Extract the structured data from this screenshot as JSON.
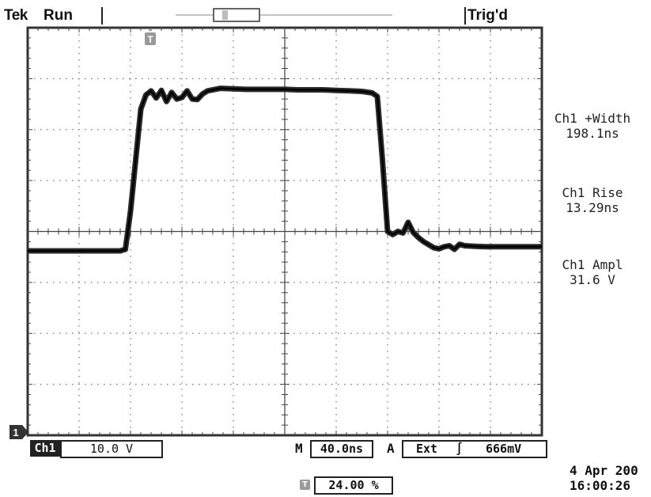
{
  "header": {
    "brand": "Tek",
    "state": "Run",
    "trigger_status": "Trig'd"
  },
  "markers": {
    "trigger_position_marker": "T",
    "channel_ground_marker": "1",
    "horizontal_position_icon": "T"
  },
  "measurements": [
    {
      "label": "Ch1 +Width",
      "value": "198.1ns"
    },
    {
      "label": "Ch1 Rise",
      "value": "13.29ns"
    },
    {
      "label": "Ch1 Ampl",
      "value": "31.6 V"
    }
  ],
  "channel": {
    "name": "Ch1",
    "scale": "10.0 V"
  },
  "timebase": {
    "mode": "M",
    "scale": "40.0ns"
  },
  "trigger": {
    "mode": "A",
    "source": "Ext",
    "slope_symbol": "∫",
    "level": "666mV"
  },
  "horizontal_position": "24.00 %",
  "datetime": {
    "date": "4 Apr 200",
    "time": "16:00:26"
  },
  "chart_data": {
    "type": "line",
    "series": [
      {
        "x": [
          0,
          72,
          76,
          80,
          84,
          88,
          92,
          96,
          100,
          104,
          108,
          112,
          116,
          120,
          124,
          128,
          132,
          136,
          140,
          150,
          160,
          170,
          180,
          190,
          200,
          210,
          220,
          230,
          240,
          250,
          260,
          268,
          272,
          276,
          280,
          284,
          288,
          292,
          296,
          300,
          304,
          308,
          312,
          316,
          320,
          324,
          328,
          332,
          336,
          340,
          348,
          356,
          370,
          400
        ],
        "y": [
          -3.8,
          -3.8,
          -3.5,
          4.0,
          14.0,
          24.0,
          26.8,
          27.6,
          26.2,
          27.7,
          25.5,
          27.3,
          26.0,
          26.3,
          27.6,
          26.0,
          25.9,
          27.0,
          27.6,
          28.1,
          28.0,
          27.9,
          27.9,
          27.9,
          27.9,
          27.8,
          27.8,
          27.8,
          27.7,
          27.6,
          27.5,
          27.2,
          26.5,
          14.0,
          0.0,
          -0.6,
          0.0,
          -0.3,
          1.8,
          -0.2,
          -1.2,
          -2.0,
          -2.6,
          -3.2,
          -3.4,
          -3.0,
          -2.8,
          -3.5,
          -2.5,
          -2.8,
          -2.9,
          -3.0,
          -3.0,
          -3.0
        ]
      }
    ],
    "x_unit": "ns",
    "y_unit": "V",
    "xlim": [
      0,
      400
    ],
    "ylim": [
      -40,
      40
    ],
    "x_divisions": 10,
    "y_divisions": 8,
    "grid": true
  }
}
